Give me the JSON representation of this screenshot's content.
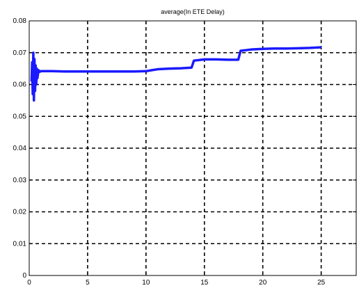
{
  "chart_data": {
    "type": "line",
    "title": "average(In ETE Delay)",
    "xlabel": "",
    "ylabel": "",
    "xlim": [
      0,
      28
    ],
    "ylim": [
      0,
      0.08
    ],
    "xticks": [
      0,
      5,
      10,
      15,
      20,
      25
    ],
    "xtick_labels": [
      "0",
      "5",
      "10",
      "15",
      "20",
      "25"
    ],
    "yticks": [
      0,
      0.01,
      0.02,
      0.03,
      0.04,
      0.05,
      0.06,
      0.07,
      0.08
    ],
    "ytick_labels": [
      "0",
      "0.01",
      "0.02",
      "0.03",
      "0.04",
      "0.05",
      "0.06",
      "0.07",
      "0.08"
    ],
    "grid": true,
    "grid_style": "dashed",
    "line_color": "#1a1aff",
    "series": [
      {
        "x": [
          0.2,
          0.25,
          0.3,
          0.35,
          0.4,
          0.45,
          0.5,
          0.55,
          0.6,
          0.65,
          0.7,
          0.8,
          0.9,
          1.0,
          2,
          3,
          4,
          5,
          6,
          7,
          8,
          9,
          10,
          10.5,
          11,
          12,
          13,
          13.9,
          14.1,
          15,
          16,
          17,
          17.9,
          18.1,
          19,
          20,
          21,
          22,
          23,
          24,
          25
        ],
        "y": [
          0.061,
          0.067,
          0.057,
          0.07,
          0.055,
          0.068,
          0.058,
          0.066,
          0.06,
          0.065,
          0.062,
          0.0645,
          0.064,
          0.0642,
          0.0642,
          0.0641,
          0.0641,
          0.0641,
          0.0641,
          0.0641,
          0.0641,
          0.0641,
          0.0642,
          0.0645,
          0.0648,
          0.065,
          0.0651,
          0.0653,
          0.0675,
          0.0679,
          0.0679,
          0.0678,
          0.0678,
          0.0706,
          0.071,
          0.0712,
          0.0713,
          0.0713,
          0.0714,
          0.0715,
          0.0717
        ]
      }
    ]
  }
}
